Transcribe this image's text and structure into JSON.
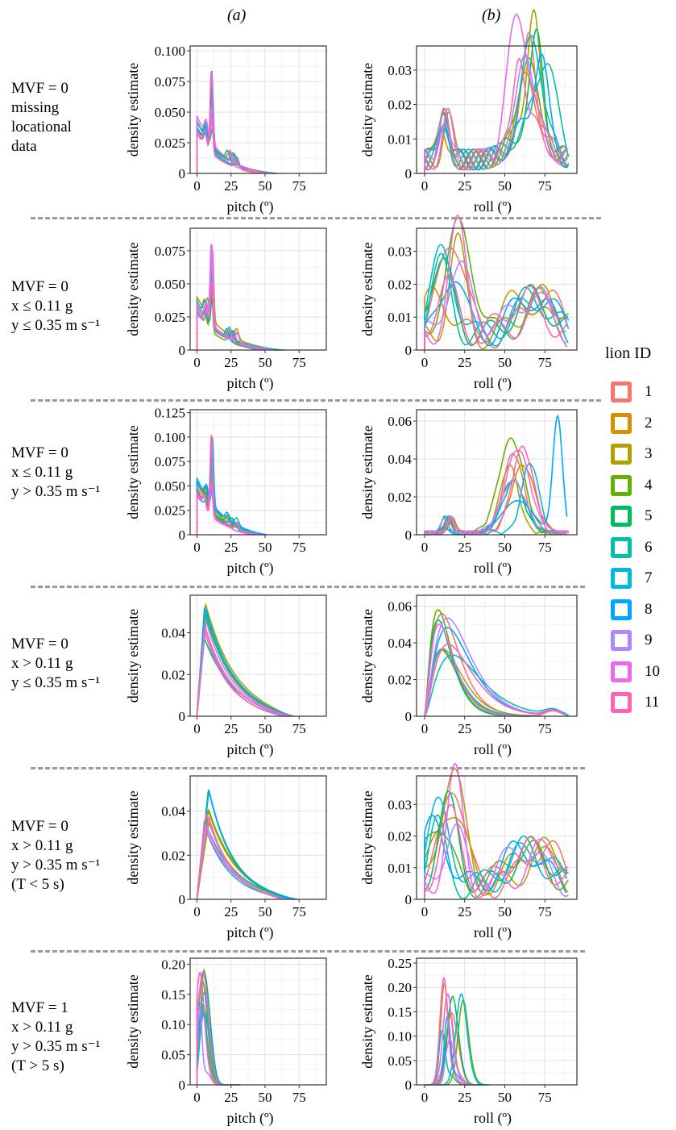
{
  "column_headers": [
    "(a)",
    "(b)"
  ],
  "row_labels": [
    "MVF = 0\nmissing\nlocational\ndata",
    "MVF = 0\nx ≤ 0.11 g\ny ≤ 0.35 m s⁻¹",
    "MVF = 0\nx ≤ 0.11 g\ny > 0.35 m s⁻¹",
    "MVF = 0\nx > 0.11 g\ny ≤ 0.35 m s⁻¹",
    "MVF = 0\nx > 0.11 g\ny > 0.35 m s⁻¹\n(T < 5 s)",
    "MVF = 1\nx > 0.11 g\ny > 0.35 m s⁻¹\n(T > 5 s)"
  ],
  "legend": {
    "title": "lion ID",
    "items": [
      {
        "label": "1",
        "color": "#F8766D"
      },
      {
        "label": "2",
        "color": "#DB8E00"
      },
      {
        "label": "3",
        "color": "#AEA200"
      },
      {
        "label": "4",
        "color": "#64B200"
      },
      {
        "label": "5",
        "color": "#00BD5C"
      },
      {
        "label": "6",
        "color": "#00C1A7"
      },
      {
        "label": "7",
        "color": "#00BADE"
      },
      {
        "label": "8",
        "color": "#00A6FF"
      },
      {
        "label": "9",
        "color": "#B385FF"
      },
      {
        "label": "10",
        "color": "#EF67EB"
      },
      {
        "label": "11",
        "color": "#FF63B6"
      }
    ]
  },
  "chart_data": [
    {
      "type": "line",
      "panel": "a",
      "row": 1,
      "xlabel": "pitch (º)",
      "ylabel": "density estimate",
      "xticks": [
        0,
        25,
        50,
        75
      ],
      "yticks": [
        "0",
        "0.025",
        "0.050",
        "0.075",
        "0.100"
      ],
      "xlim": [
        -5,
        95
      ],
      "ylim": [
        0,
        0.104
      ],
      "grid": true,
      "shape": "spike",
      "xmax_range": [
        45,
        60
      ],
      "peak_x": 11,
      "peak_y_range": [
        0.045,
        0.1
      ],
      "base_y": 0.04
    },
    {
      "type": "line",
      "panel": "b",
      "row": 1,
      "xlabel": "roll (º)",
      "ylabel": "density estimate",
      "xticks": [
        0,
        25,
        50,
        75
      ],
      "yticks": [
        "0",
        "0.01",
        "0.02",
        "0.03"
      ],
      "xlim": [
        -5,
        95
      ],
      "ylim": [
        0,
        0.037
      ],
      "grid": true,
      "shape": "bimodal_high",
      "xmax_range": [
        88,
        90
      ],
      "peak_y_range": [
        0.015,
        0.037
      ]
    },
    {
      "type": "line",
      "panel": "a",
      "row": 2,
      "xlabel": "pitch (º)",
      "ylabel": "density estimate",
      "xticks": [
        0,
        25,
        50,
        75
      ],
      "yticks": [
        "0",
        "0.025",
        "0.050",
        "0.075"
      ],
      "xlim": [
        -5,
        95
      ],
      "ylim": [
        0,
        0.092
      ],
      "grid": true,
      "shape": "spike",
      "xmax_range": [
        45,
        65
      ],
      "peak_x": 11,
      "peak_y_range": [
        0.05,
        0.09
      ],
      "base_y": 0.035
    },
    {
      "type": "line",
      "panel": "b",
      "row": 2,
      "xlabel": "roll (º)",
      "ylabel": "density estimate",
      "xticks": [
        0,
        25,
        50,
        75
      ],
      "yticks": [
        "0",
        "0.01",
        "0.02",
        "0.03"
      ],
      "xlim": [
        -5,
        95
      ],
      "ylim": [
        0,
        0.037
      ],
      "grid": true,
      "shape": "bimodal_low",
      "xmax_range": [
        88,
        90
      ],
      "peak_y_range": [
        0.012,
        0.036
      ]
    },
    {
      "type": "line",
      "panel": "a",
      "row": 3,
      "xlabel": "pitch (º)",
      "ylabel": "density estimate",
      "xticks": [
        0,
        25,
        50,
        75
      ],
      "yticks": [
        "0",
        "0.025",
        "0.050",
        "0.075",
        "0.100",
        "0.125"
      ],
      "xlim": [
        -5,
        95
      ],
      "ylim": [
        0,
        0.128
      ],
      "grid": true,
      "shape": "spike",
      "xmax_range": [
        40,
        52
      ],
      "peak_x": 11,
      "peak_y_range": [
        0.06,
        0.12
      ],
      "base_y": 0.05
    },
    {
      "type": "line",
      "panel": "b",
      "row": 3,
      "xlabel": "roll (º)",
      "ylabel": "density estimate",
      "xticks": [
        0,
        25,
        50,
        75
      ],
      "yticks": [
        "0",
        "0.02",
        "0.04",
        "0.06"
      ],
      "xlim": [
        -5,
        95
      ],
      "ylim": [
        0,
        0.066
      ],
      "grid": true,
      "shape": "high_mode",
      "xmax_range": [
        88,
        90
      ],
      "peak_y_range": [
        0.025,
        0.05
      ],
      "outlier_peak": {
        "x": 83,
        "y": 0.062
      }
    },
    {
      "type": "line",
      "panel": "a",
      "row": 4,
      "xlabel": "pitch (º)",
      "ylabel": "density estimate",
      "xticks": [
        0,
        25,
        50,
        75
      ],
      "yticks": [
        "0",
        "0.02",
        "0.04"
      ],
      "xlim": [
        -5,
        95
      ],
      "ylim": [
        0,
        0.058
      ],
      "grid": true,
      "shape": "decay",
      "xmax_range": [
        62,
        72
      ],
      "peak_x": 3,
      "peak_y_range": [
        0.038,
        0.056
      ]
    },
    {
      "type": "line",
      "panel": "b",
      "row": 4,
      "xlabel": "roll (º)",
      "ylabel": "density estimate",
      "xticks": [
        0,
        25,
        50,
        75
      ],
      "yticks": [
        "0",
        "0.02",
        "0.04",
        "0.06"
      ],
      "xlim": [
        -5,
        95
      ],
      "ylim": [
        0,
        0.066
      ],
      "grid": true,
      "shape": "skewed",
      "xmax_range": [
        86,
        90
      ],
      "peak_y_range": [
        0.033,
        0.061
      ]
    },
    {
      "type": "line",
      "panel": "a",
      "row": 5,
      "xlabel": "pitch (º)",
      "ylabel": "density estimate",
      "xticks": [
        0,
        25,
        50,
        75
      ],
      "yticks": [
        "0",
        "0.02",
        "0.04"
      ],
      "xlim": [
        -5,
        95
      ],
      "ylim": [
        0,
        0.056
      ],
      "grid": true,
      "shape": "decay",
      "xmax_range": [
        62,
        74
      ],
      "peak_x": 5,
      "peak_y_range": [
        0.033,
        0.052
      ]
    },
    {
      "type": "line",
      "panel": "b",
      "row": 5,
      "xlabel": "roll (º)",
      "ylabel": "density estimate",
      "xticks": [
        0,
        25,
        50,
        75
      ],
      "yticks": [
        "0",
        "0.01",
        "0.02",
        "0.03"
      ],
      "xlim": [
        -5,
        95
      ],
      "ylim": [
        0,
        0.039
      ],
      "grid": true,
      "shape": "bimodal_low",
      "xmax_range": [
        88,
        90
      ],
      "peak_y_range": [
        0.018,
        0.037
      ]
    },
    {
      "type": "line",
      "panel": "a",
      "row": 6,
      "xlabel": "pitch (º)",
      "ylabel": "density estimate",
      "xticks": [
        0,
        25,
        50,
        75
      ],
      "yticks": [
        "0",
        "0.05",
        "0.10",
        "0.15",
        "0.20"
      ],
      "xlim": [
        -5,
        95
      ],
      "ylim": [
        0,
        0.21
      ],
      "grid": true,
      "shape": "narrow",
      "xmax_range": [
        18,
        34
      ],
      "peak_x_range": [
        1,
        6
      ],
      "peak_y_range": [
        0.1,
        0.2
      ]
    },
    {
      "type": "line",
      "panel": "b",
      "row": 6,
      "xlabel": "roll (º)",
      "ylabel": "density estimate",
      "xticks": [
        0,
        25,
        50,
        75
      ],
      "yticks": [
        "0",
        "0.05",
        "0.10",
        "0.15",
        "0.20",
        "0.25"
      ],
      "xlim": [
        -5,
        95
      ],
      "ylim": [
        0,
        0.26
      ],
      "grid": true,
      "shape": "narrow",
      "xmax_range": [
        30,
        46
      ],
      "peak_x_range": [
        7,
        25
      ],
      "peak_y_range": [
        0.08,
        0.24
      ]
    }
  ]
}
